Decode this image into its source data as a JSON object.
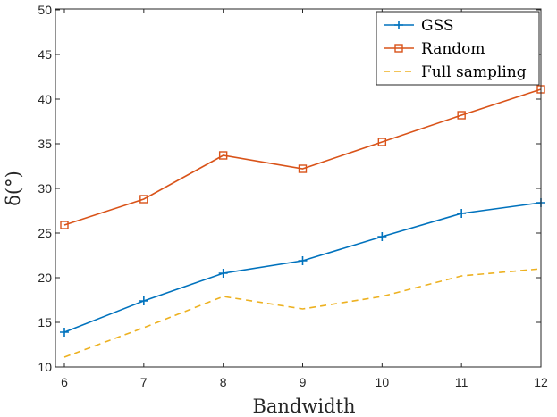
{
  "chart_data": {
    "type": "line",
    "title": "",
    "xlabel": "Bandwidth",
    "ylabel": "δ(°)",
    "x": [
      6,
      7,
      8,
      9,
      10,
      11,
      12
    ],
    "xlim": [
      6,
      12
    ],
    "ylim": [
      10,
      50
    ],
    "xticks": [
      "6",
      "7",
      "8",
      "9",
      "10",
      "11",
      "12"
    ],
    "yticks": [
      "10",
      "15",
      "20",
      "25",
      "30",
      "35",
      "40",
      "45",
      "50"
    ],
    "grid": false,
    "legend_position": "top-right",
    "series": [
      {
        "name": "GSS",
        "color": "#0072BD",
        "marker": "plus",
        "linestyle": "solid",
        "values": [
          13.9,
          17.4,
          20.5,
          21.9,
          24.6,
          27.2,
          28.4
        ]
      },
      {
        "name": "Random",
        "color": "#D95319",
        "marker": "square",
        "linestyle": "solid",
        "values": [
          25.9,
          28.8,
          33.7,
          32.2,
          35.2,
          38.2,
          41.1
        ]
      },
      {
        "name": "Full sampling",
        "color": "#EDB120",
        "marker": "none",
        "linestyle": "dashed",
        "values": [
          11.1,
          14.4,
          17.9,
          16.5,
          17.9,
          20.2,
          21.0
        ]
      }
    ]
  }
}
